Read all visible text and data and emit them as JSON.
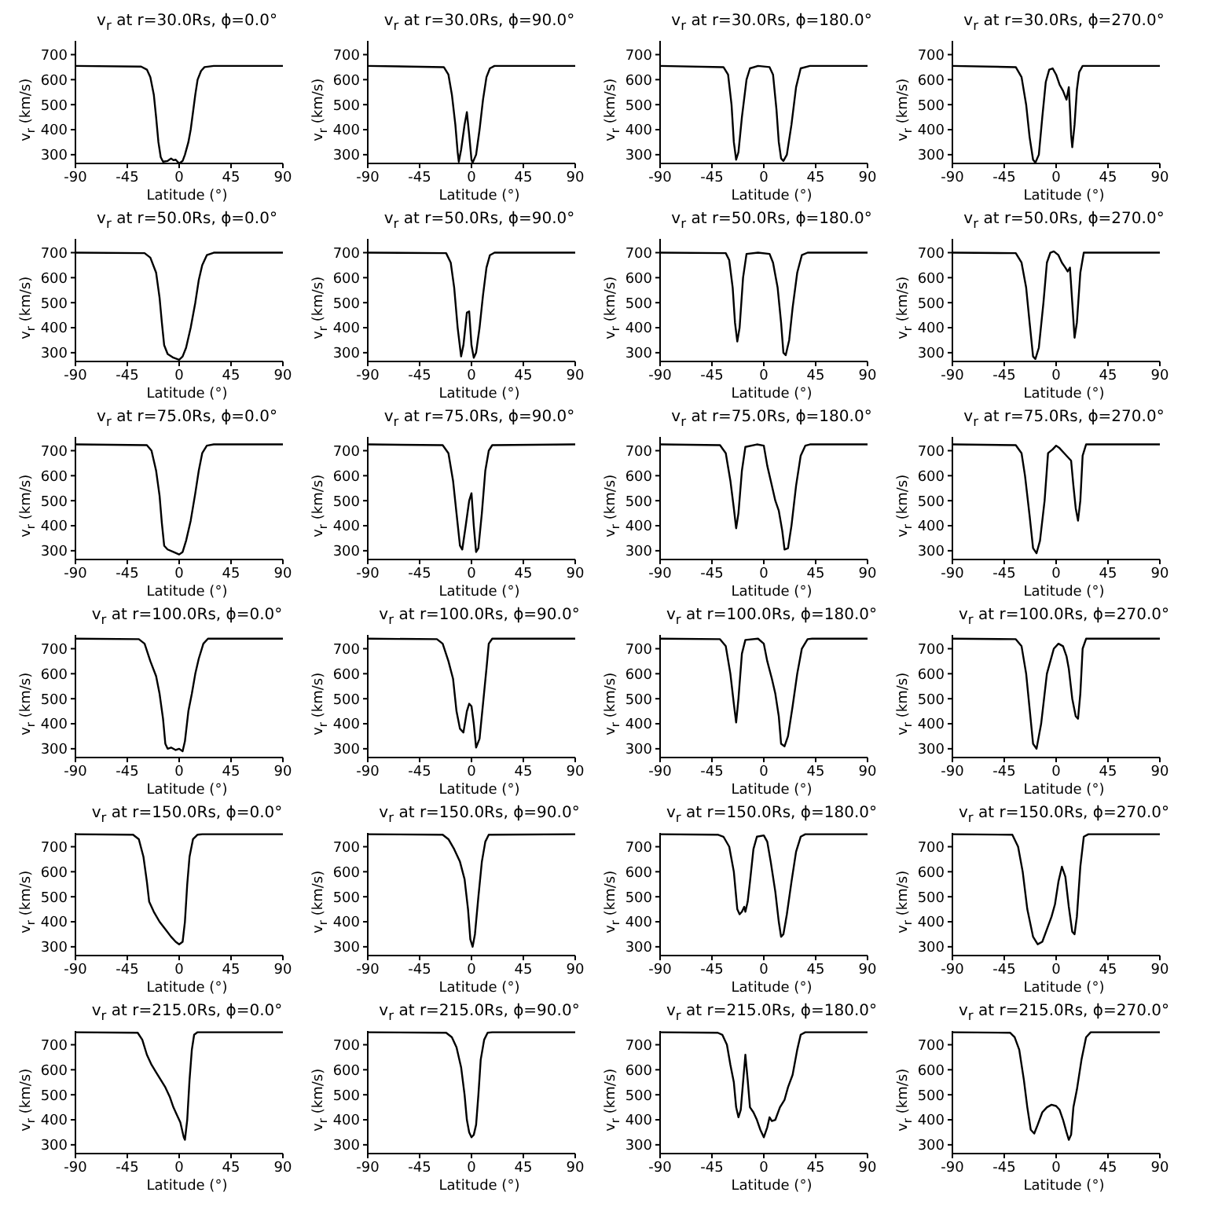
{
  "chart_data": [
    {
      "type": "line",
      "title": "v$_{r}$ at r=30.0Rs, ϕ=0.0°",
      "xlabel": "Latitude (°)",
      "ylabel": "v$_{r}$ (km/s)",
      "color": "#000000",
      "xlim": [
        -90,
        90
      ],
      "xticks": [
        -90,
        -45,
        0,
        45,
        90
      ],
      "ylim": [
        265,
        755
      ],
      "yticks": [
        300,
        400,
        500,
        600,
        700
      ],
      "x": [
        -90,
        -33,
        -28,
        -25,
        -22,
        -20,
        -18,
        -16,
        -14,
        -10,
        -7,
        -5,
        -3,
        0,
        3,
        5,
        8,
        10,
        12,
        14,
        16,
        19,
        22,
        30,
        90
      ],
      "values": [
        655,
        652,
        640,
        610,
        540,
        450,
        350,
        290,
        272,
        275,
        285,
        278,
        280,
        265,
        275,
        300,
        350,
        400,
        470,
        540,
        600,
        635,
        650,
        655,
        655
      ]
    },
    {
      "type": "line",
      "title": "v$_{r}$ at r=30.0Rs, ϕ=90.0°",
      "xlabel": "Latitude (°)",
      "ylabel": "v$_{r}$ (km/s)",
      "color": "#000000",
      "xlim": [
        -90,
        90
      ],
      "xticks": [
        -90,
        -45,
        0,
        45,
        90
      ],
      "ylim": [
        265,
        755
      ],
      "yticks": [
        300,
        400,
        500,
        600,
        700
      ],
      "x": [
        -90,
        -24,
        -20,
        -17,
        -14,
        -12,
        -11,
        -9,
        -6,
        -4,
        -2,
        0,
        1,
        4,
        7,
        10,
        13,
        16,
        20,
        90
      ],
      "values": [
        655,
        650,
        620,
        540,
        420,
        310,
        272,
        320,
        420,
        470,
        380,
        280,
        268,
        300,
        400,
        520,
        610,
        645,
        655,
        655
      ]
    },
    {
      "type": "line",
      "title": "v$_{r}$ at r=30.0Rs, ϕ=180.0°",
      "xlabel": "Latitude (°)",
      "ylabel": "v$_{r}$ (km/s)",
      "color": "#000000",
      "xlim": [
        -90,
        90
      ],
      "xticks": [
        -90,
        -45,
        0,
        45,
        90
      ],
      "ylim": [
        265,
        755
      ],
      "yticks": [
        300,
        400,
        500,
        600,
        700
      ],
      "x": [
        -90,
        -35,
        -31,
        -28,
        -26,
        -24,
        -22,
        -19,
        -15,
        -12,
        -5,
        5,
        8,
        11,
        13,
        15,
        17,
        20,
        24,
        28,
        32,
        40,
        90
      ],
      "values": [
        655,
        650,
        620,
        500,
        350,
        280,
        310,
        450,
        600,
        645,
        655,
        650,
        620,
        480,
        350,
        285,
        275,
        300,
        420,
        570,
        645,
        655,
        655
      ]
    },
    {
      "type": "line",
      "title": "v$_{r}$ at r=30.0Rs, ϕ=270.0°",
      "xlabel": "Latitude (°)",
      "ylabel": "v$_{r}$ (km/s)",
      "color": "#000000",
      "xlim": [
        -90,
        90
      ],
      "xticks": [
        -90,
        -45,
        0,
        45,
        90
      ],
      "ylim": [
        265,
        755
      ],
      "yticks": [
        300,
        400,
        500,
        600,
        700
      ],
      "x": [
        -90,
        -35,
        -30,
        -26,
        -23,
        -20,
        -18,
        -15,
        -12,
        -9,
        -6,
        -3,
        0,
        3,
        6,
        9,
        11,
        12,
        13,
        14,
        16,
        18,
        20,
        23,
        90
      ],
      "values": [
        655,
        650,
        610,
        500,
        370,
        280,
        268,
        300,
        450,
        590,
        640,
        645,
        620,
        580,
        555,
        520,
        570,
        480,
        380,
        330,
        420,
        560,
        630,
        655,
        655
      ]
    },
    {
      "type": "line",
      "title": "v$_{r}$ at r=50.0Rs, ϕ=0.0°",
      "xlabel": "Latitude (°)",
      "ylabel": "v$_{r}$ (km/s)",
      "color": "#000000",
      "xlim": [
        -90,
        90
      ],
      "xticks": [
        -90,
        -45,
        0,
        45,
        90
      ],
      "ylim": [
        265,
        755
      ],
      "yticks": [
        300,
        400,
        500,
        600,
        700
      ],
      "x": [
        -90,
        -30,
        -25,
        -20,
        -17,
        -15,
        -13,
        -10,
        -5,
        0,
        3,
        6,
        10,
        14,
        17,
        20,
        24,
        30,
        90
      ],
      "values": [
        700,
        698,
        680,
        620,
        520,
        420,
        330,
        295,
        280,
        272,
        285,
        320,
        400,
        500,
        590,
        650,
        690,
        700,
        700
      ]
    },
    {
      "type": "line",
      "title": "v$_{r}$ at r=50.0Rs, ϕ=90.0°",
      "xlabel": "Latitude (°)",
      "ylabel": "v$_{r}$ (km/s)",
      "color": "#000000",
      "xlim": [
        -90,
        90
      ],
      "xticks": [
        -90,
        -45,
        0,
        45,
        90
      ],
      "ylim": [
        265,
        755
      ],
      "yticks": [
        300,
        400,
        500,
        600,
        700
      ],
      "x": [
        -90,
        -22,
        -18,
        -15,
        -12,
        -9,
        -7,
        -4,
        -2,
        0,
        2,
        4,
        7,
        10,
        13,
        16,
        20,
        90
      ],
      "values": [
        700,
        698,
        660,
        560,
        400,
        285,
        330,
        460,
        465,
        330,
        280,
        300,
        400,
        530,
        640,
        690,
        700,
        700
      ]
    },
    {
      "type": "line",
      "title": "v$_{r}$ at r=50.0Rs, ϕ=180.0°",
      "xlabel": "Latitude (°)",
      "ylabel": "v$_{r}$ (km/s)",
      "color": "#000000",
      "xlim": [
        -90,
        90
      ],
      "xticks": [
        -90,
        -45,
        0,
        45,
        90
      ],
      "ylim": [
        265,
        755
      ],
      "yticks": [
        300,
        400,
        500,
        600,
        700
      ],
      "x": [
        -90,
        -33,
        -30,
        -27,
        -25,
        -23,
        -21,
        -18,
        -15,
        -5,
        5,
        8,
        12,
        15,
        17,
        19,
        22,
        25,
        29,
        33,
        38,
        90
      ],
      "values": [
        700,
        698,
        670,
        560,
        420,
        345,
        400,
        600,
        695,
        700,
        695,
        660,
        560,
        420,
        300,
        290,
        350,
        480,
        620,
        690,
        700,
        700
      ]
    },
    {
      "type": "line",
      "title": "v$_{r}$ at r=50.0Rs, ϕ=270.0°",
      "xlabel": "Latitude (°)",
      "ylabel": "v$_{r}$ (km/s)",
      "color": "#000000",
      "xlim": [
        -90,
        90
      ],
      "xticks": [
        -90,
        -45,
        0,
        45,
        90
      ],
      "ylim": [
        265,
        755
      ],
      "yticks": [
        300,
        400,
        500,
        600,
        700
      ],
      "x": [
        -90,
        -35,
        -30,
        -26,
        -23,
        -20,
        -18,
        -15,
        -11,
        -8,
        -5,
        -2,
        2,
        5,
        8,
        10,
        12,
        14,
        16,
        18,
        21,
        24,
        90
      ],
      "values": [
        700,
        698,
        660,
        560,
        420,
        285,
        275,
        320,
        500,
        660,
        700,
        705,
        690,
        660,
        640,
        625,
        640,
        500,
        360,
        420,
        620,
        700,
        700
      ]
    },
    {
      "type": "line",
      "title": "v$_{r}$ at r=75.0Rs, ϕ=0.0°",
      "xlabel": "Latitude (°)",
      "ylabel": "v$_{r}$ (km/s)",
      "color": "#000000",
      "xlim": [
        -90,
        90
      ],
      "xticks": [
        -90,
        -45,
        0,
        45,
        90
      ],
      "ylim": [
        265,
        755
      ],
      "yticks": [
        300,
        400,
        500,
        600,
        700
      ],
      "x": [
        -90,
        -28,
        -24,
        -20,
        -17,
        -15,
        -13,
        -10,
        -5,
        0,
        3,
        6,
        10,
        14,
        17,
        20,
        24,
        30,
        90
      ],
      "values": [
        725,
        722,
        700,
        620,
        520,
        410,
        320,
        305,
        295,
        285,
        295,
        340,
        420,
        530,
        620,
        690,
        720,
        725,
        725
      ]
    },
    {
      "type": "line",
      "title": "v$_{r}$ at r=75.0Rs, ϕ=90.0°",
      "xlabel": "Latitude (°)",
      "ylabel": "v$_{r}$ (km/s)",
      "color": "#000000",
      "xlim": [
        -90,
        90
      ],
      "xticks": [
        -90,
        -45,
        0,
        45,
        90
      ],
      "ylim": [
        265,
        755
      ],
      "yticks": [
        300,
        400,
        500,
        600,
        700
      ],
      "x": [
        -90,
        -25,
        -20,
        -16,
        -13,
        -10,
        -8,
        -5,
        -2,
        0,
        2,
        4,
        6,
        9,
        12,
        15,
        18,
        90
      ],
      "values": [
        725,
        722,
        690,
        580,
        450,
        320,
        305,
        400,
        500,
        530,
        400,
        295,
        310,
        450,
        620,
        700,
        722,
        725
      ]
    },
    {
      "type": "line",
      "title": "v$_{r}$ at r=75.0Rs, ϕ=180.0°",
      "xlabel": "Latitude (°)",
      "ylabel": "v$_{r}$ (km/s)",
      "color": "#000000",
      "xlim": [
        -90,
        90
      ],
      "xticks": [
        -90,
        -45,
        0,
        45,
        90
      ],
      "ylim": [
        265,
        755
      ],
      "yticks": [
        300,
        400,
        500,
        600,
        700
      ],
      "x": [
        -90,
        -38,
        -33,
        -29,
        -26,
        -24,
        -22,
        -19,
        -16,
        -6,
        0,
        3,
        7,
        10,
        13,
        16,
        18,
        21,
        24,
        28,
        32,
        36,
        40,
        90
      ],
      "values": [
        725,
        722,
        690,
        580,
        470,
        390,
        450,
        620,
        715,
        725,
        720,
        640,
        560,
        500,
        460,
        380,
        305,
        310,
        400,
        560,
        680,
        720,
        725,
        725
      ]
    },
    {
      "type": "line",
      "title": "v$_{r}$ at r=75.0Rs, ϕ=270.0°",
      "xlabel": "Latitude (°)",
      "ylabel": "v$_{r}$ (km/s)",
      "color": "#000000",
      "xlim": [
        -90,
        90
      ],
      "xticks": [
        -90,
        -45,
        0,
        45,
        90
      ],
      "ylim": [
        265,
        755
      ],
      "yticks": [
        300,
        400,
        500,
        600,
        700
      ],
      "x": [
        -90,
        -35,
        -30,
        -27,
        -23,
        -20,
        -17,
        -14,
        -10,
        -7,
        -3,
        0,
        3,
        7,
        10,
        13,
        15,
        17,
        19,
        21,
        23,
        26,
        90
      ],
      "values": [
        725,
        722,
        690,
        600,
        440,
        310,
        290,
        340,
        500,
        690,
        705,
        720,
        710,
        690,
        675,
        660,
        560,
        470,
        420,
        500,
        680,
        725,
        725
      ]
    },
    {
      "type": "line",
      "title": "v$_{r}$ at r=100.0Rs, ϕ=0.0°",
      "xlabel": "Latitude (°)",
      "ylabel": "v$_{r}$ (km/s)",
      "color": "#000000",
      "xlim": [
        -90,
        90
      ],
      "xticks": [
        -90,
        -45,
        0,
        45,
        90
      ],
      "ylim": [
        265,
        755
      ],
      "yticks": [
        300,
        400,
        500,
        600,
        700
      ],
      "x": [
        -90,
        -35,
        -30,
        -25,
        -20,
        -17,
        -14,
        -12,
        -10,
        -7,
        -3,
        0,
        3,
        5,
        8,
        11,
        14,
        17,
        21,
        25,
        90
      ],
      "values": [
        740,
        738,
        720,
        650,
        590,
        520,
        420,
        320,
        300,
        305,
        295,
        300,
        290,
        330,
        450,
        520,
        600,
        660,
        720,
        740,
        740
      ]
    },
    {
      "type": "line",
      "title": "v$_{r}$ at r=100.0Rs, ϕ=90.0°",
      "xlabel": "Latitude (°)",
      "ylabel": "v$_{r}$ (km/s)",
      "color": "#000000",
      "xlim": [
        -90,
        90
      ],
      "xticks": [
        -90,
        -45,
        0,
        45,
        90
      ],
      "ylim": [
        265,
        755
      ],
      "yticks": [
        300,
        400,
        500,
        600,
        700
      ],
      "x": [
        -90,
        -30,
        -25,
        -20,
        -16,
        -13,
        -10,
        -7,
        -4,
        -2,
        0,
        2,
        4,
        7,
        10,
        13,
        15,
        18,
        90
      ],
      "values": [
        740,
        738,
        720,
        650,
        580,
        450,
        380,
        365,
        450,
        480,
        470,
        400,
        305,
        340,
        480,
        620,
        720,
        740,
        740
      ]
    },
    {
      "type": "line",
      "title": "v$_{r}$ at r=100.0Rs, ϕ=180.0°",
      "xlabel": "Latitude (°)",
      "ylabel": "v$_{r}$ (km/s)",
      "color": "#000000",
      "xlim": [
        -90,
        90
      ],
      "xticks": [
        -90,
        -45,
        0,
        45,
        90
      ],
      "ylim": [
        265,
        755
      ],
      "yticks": [
        300,
        400,
        500,
        600,
        700
      ],
      "x": [
        -90,
        -38,
        -33,
        -29,
        -26,
        -24,
        -22,
        -19,
        -16,
        -5,
        0,
        3,
        7,
        10,
        13,
        15,
        18,
        21,
        25,
        29,
        33,
        38,
        42,
        90
      ],
      "values": [
        740,
        738,
        710,
        600,
        480,
        405,
        500,
        680,
        735,
        740,
        720,
        650,
        580,
        520,
        430,
        320,
        310,
        350,
        470,
        600,
        700,
        738,
        740,
        740
      ]
    },
    {
      "type": "line",
      "title": "v$_{r}$ at r=100.0Rs, ϕ=270.0°",
      "xlabel": "Latitude (°)",
      "ylabel": "v$_{r}$ (km/s)",
      "color": "#000000",
      "xlim": [
        -90,
        90
      ],
      "xticks": [
        -90,
        -45,
        0,
        45,
        90
      ],
      "ylim": [
        265,
        755
      ],
      "yticks": [
        300,
        400,
        500,
        600,
        700
      ],
      "x": [
        -90,
        -35,
        -30,
        -26,
        -23,
        -20,
        -17,
        -13,
        -10,
        -8,
        -5,
        -2,
        2,
        6,
        9,
        11,
        14,
        17,
        19,
        21,
        23,
        26,
        90
      ],
      "values": [
        740,
        738,
        710,
        600,
        460,
        320,
        300,
        400,
        520,
        600,
        650,
        700,
        720,
        710,
        670,
        620,
        500,
        430,
        420,
        520,
        700,
        740,
        740
      ]
    },
    {
      "type": "line",
      "title": "v$_{r}$ at r=150.0Rs, ϕ=0.0°",
      "xlabel": "Latitude (°)",
      "ylabel": "v$_{r}$ (km/s)",
      "color": "#000000",
      "xlim": [
        -90,
        90
      ],
      "xticks": [
        -90,
        -45,
        0,
        45,
        90
      ],
      "ylim": [
        265,
        755
      ],
      "yticks": [
        300,
        400,
        500,
        600,
        700
      ],
      "x": [
        -90,
        -40,
        -35,
        -31,
        -28,
        -26,
        -22,
        -17,
        -12,
        -7,
        -3,
        0,
        3,
        5,
        7,
        9,
        12,
        16,
        20,
        90
      ],
      "values": [
        750,
        748,
        730,
        660,
        560,
        480,
        440,
        400,
        370,
        340,
        320,
        310,
        320,
        400,
        550,
        660,
        730,
        748,
        750,
        750
      ]
    },
    {
      "type": "line",
      "title": "v$_{r}$ at r=150.0Rs, ϕ=90.0°",
      "xlabel": "Latitude (°)",
      "ylabel": "v$_{r}$ (km/s)",
      "color": "#000000",
      "xlim": [
        -90,
        90
      ],
      "xticks": [
        -90,
        -45,
        0,
        45,
        90
      ],
      "ylim": [
        265,
        755
      ],
      "yticks": [
        300,
        400,
        500,
        600,
        700
      ],
      "x": [
        -90,
        -25,
        -20,
        -15,
        -10,
        -6,
        -3,
        -1,
        1,
        3,
        6,
        9,
        12,
        15,
        90
      ],
      "values": [
        750,
        748,
        730,
        690,
        640,
        570,
        450,
        330,
        300,
        350,
        500,
        640,
        720,
        748,
        750
      ]
    },
    {
      "type": "line",
      "title": "v$_{r}$ at r=150.0Rs, ϕ=180.0°",
      "xlabel": "Latitude (°)",
      "ylabel": "v$_{r}$ (km/s)",
      "color": "#000000",
      "xlim": [
        -90,
        90
      ],
      "xticks": [
        -90,
        -45,
        0,
        45,
        90
      ],
      "ylim": [
        265,
        755
      ],
      "yticks": [
        300,
        400,
        500,
        600,
        700
      ],
      "x": [
        -90,
        -40,
        -35,
        -30,
        -26,
        -23,
        -21,
        -19,
        -17,
        -16,
        -14,
        -12,
        -9,
        -6,
        0,
        3,
        6,
        10,
        13,
        15,
        17,
        20,
        24,
        28,
        32,
        36,
        90
      ],
      "values": [
        750,
        748,
        740,
        700,
        600,
        450,
        430,
        440,
        460,
        440,
        480,
        560,
        690,
        740,
        745,
        720,
        640,
        520,
        400,
        340,
        350,
        430,
        560,
        680,
        740,
        750,
        750
      ]
    },
    {
      "type": "line",
      "title": "v$_{r}$ at r=150.0Rs, ϕ=270.0°",
      "xlabel": "Latitude (°)",
      "ylabel": "v$_{r}$ (km/s)",
      "color": "#000000",
      "xlim": [
        -90,
        90
      ],
      "xticks": [
        -90,
        -45,
        0,
        45,
        90
      ],
      "ylim": [
        265,
        755
      ],
      "yticks": [
        300,
        400,
        500,
        600,
        700
      ],
      "x": [
        -90,
        -38,
        -33,
        -29,
        -25,
        -20,
        -16,
        -12,
        -8,
        -4,
        -1,
        2,
        5,
        8,
        11,
        14,
        16,
        18,
        21,
        24,
        28,
        90
      ],
      "values": [
        750,
        748,
        700,
        600,
        450,
        340,
        310,
        320,
        370,
        420,
        470,
        560,
        620,
        580,
        460,
        360,
        350,
        420,
        620,
        740,
        750,
        750
      ]
    },
    {
      "type": "line",
      "title": "v$_{r}$ at r=215.0Rs, ϕ=0.0°",
      "xlabel": "Latitude (°)",
      "ylabel": "v$_{r}$ (km/s)",
      "color": "#000000",
      "xlim": [
        -90,
        90
      ],
      "xticks": [
        -90,
        -45,
        0,
        45,
        90
      ],
      "ylim": [
        265,
        755
      ],
      "yticks": [
        300,
        400,
        500,
        600,
        700
      ],
      "x": [
        -90,
        -36,
        -32,
        -28,
        -24,
        -20,
        -16,
        -12,
        -8,
        -5,
        -2,
        1,
        4,
        5,
        7,
        9,
        11,
        13,
        16,
        90
      ],
      "values": [
        750,
        748,
        720,
        660,
        620,
        590,
        560,
        530,
        490,
        450,
        420,
        390,
        330,
        320,
        400,
        560,
        680,
        740,
        750,
        750
      ]
    },
    {
      "type": "line",
      "title": "v$_{r}$ at r=215.0Rs, ϕ=90.0°",
      "xlabel": "Latitude (°)",
      "ylabel": "v$_{r}$ (km/s)",
      "color": "#000000",
      "xlim": [
        -90,
        90
      ],
      "xticks": [
        -90,
        -45,
        0,
        45,
        90
      ],
      "ylim": [
        265,
        755
      ],
      "yticks": [
        300,
        400,
        500,
        600,
        700
      ],
      "x": [
        -90,
        -22,
        -17,
        -13,
        -9,
        -6,
        -4,
        -2,
        0,
        2,
        4,
        6,
        8,
        11,
        14,
        18,
        90
      ],
      "values": [
        750,
        748,
        730,
        690,
        610,
        500,
        400,
        350,
        330,
        340,
        380,
        500,
        640,
        720,
        748,
        750,
        750
      ]
    },
    {
      "type": "line",
      "title": "v$_{r}$ at r=215.0Rs, ϕ=180.0°",
      "xlabel": "Latitude (°)",
      "ylabel": "v$_{r}$ (km/s)",
      "color": "#000000",
      "xlim": [
        -90,
        90
      ],
      "xticks": [
        -90,
        -45,
        0,
        45,
        90
      ],
      "ylim": [
        265,
        755
      ],
      "yticks": [
        300,
        400,
        500,
        600,
        700
      ],
      "x": [
        -90,
        -40,
        -36,
        -32,
        -29,
        -26,
        -24,
        -22,
        -20,
        -18,
        -16,
        -14,
        -12,
        -9,
        -6,
        -3,
        0,
        3,
        5,
        7,
        10,
        14,
        18,
        21,
        25,
        29,
        32,
        36,
        90
      ],
      "values": [
        750,
        748,
        740,
        700,
        620,
        550,
        450,
        410,
        440,
        550,
        660,
        560,
        450,
        430,
        400,
        360,
        330,
        370,
        410,
        395,
        400,
        450,
        480,
        530,
        580,
        680,
        740,
        750,
        750
      ]
    },
    {
      "type": "line",
      "title": "v$_{r}$ at r=215.0Rs, ϕ=270.0°",
      "xlabel": "Latitude (°)",
      "ylabel": "v$_{r}$ (km/s)",
      "color": "#000000",
      "xlim": [
        -90,
        90
      ],
      "xticks": [
        -90,
        -45,
        0,
        45,
        90
      ],
      "ylim": [
        265,
        755
      ],
      "yticks": [
        300,
        400,
        500,
        600,
        700
      ],
      "x": [
        -90,
        -40,
        -36,
        -32,
        -28,
        -25,
        -22,
        -19,
        -16,
        -12,
        -8,
        -4,
        0,
        3,
        6,
        9,
        11,
        13,
        15,
        18,
        22,
        26,
        30,
        90
      ],
      "values": [
        750,
        748,
        730,
        680,
        560,
        450,
        360,
        345,
        380,
        430,
        450,
        460,
        455,
        440,
        400,
        350,
        320,
        340,
        450,
        520,
        640,
        730,
        750,
        750
      ]
    }
  ]
}
